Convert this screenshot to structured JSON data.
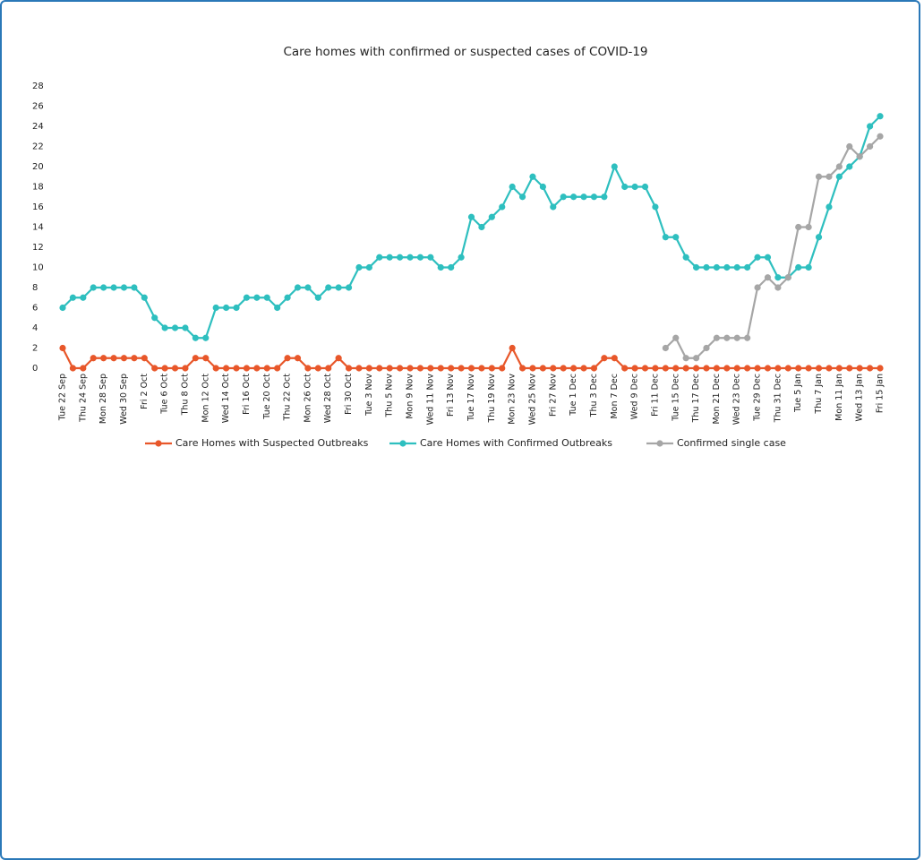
{
  "chart_data": {
    "type": "line",
    "title": "Care homes with confirmed or suspected cases of COVID-19",
    "categories": [
      "Tue 22 Sep",
      null,
      "Thu 24 Sep",
      null,
      "Mon 28 Sep",
      null,
      "Wed 30 Sep",
      null,
      "Fri 2 Oct",
      null,
      "Tue 6 Oct",
      null,
      "Thu 8 Oct",
      null,
      "Mon 12 Oct",
      null,
      "Wed 14 Oct",
      null,
      "Fri 16 Oct",
      null,
      "Tue 20 Oct",
      null,
      "Thu 22 Oct",
      null,
      "Mon 26 Oct",
      null,
      "Wed 28 Oct",
      null,
      "Fri 30 Oct",
      null,
      "Tue 3 Nov",
      null,
      "Thu 5 Nov",
      null,
      "Mon 9 Nov",
      null,
      "Wed 11 Nov",
      null,
      "Fri 13 Nov",
      null,
      "Tue 17 Nov",
      null,
      "Thu 19 Nov",
      null,
      "Mon 23 Nov",
      null,
      "Wed 25 Nov",
      null,
      "Fri 27 Nov",
      null,
      "Tue 1 Dec",
      null,
      "Thu 3 Dec",
      null,
      "Mon 7 Dec",
      null,
      "Wed 9 Dec",
      null,
      "Fri 11 Dec",
      null,
      "Tue 15 Dec",
      null,
      "Thu 17 Dec",
      null,
      "Mon 21 Dec",
      null,
      "Wed 23 Dec",
      null,
      "Tue 29 Dec",
      null,
      "Thu 31 Dec",
      null,
      "Tue 5 Jan",
      null,
      "Thu 7 Jan",
      null,
      "Mon 11 Jan",
      null,
      "Wed 13 Jan",
      null,
      "Fri 15 Jan"
    ],
    "series": [
      {
        "name": "Care Homes with Suspected Outbreaks",
        "color": "#e8572a",
        "values": [
          2,
          0,
          0,
          1,
          1,
          1,
          1,
          1,
          1,
          0,
          0,
          0,
          0,
          1,
          1,
          0,
          0,
          0,
          0,
          0,
          0,
          0,
          1,
          1,
          0,
          0,
          0,
          1,
          0,
          0,
          0,
          0,
          0,
          0,
          0,
          0,
          0,
          0,
          0,
          0,
          0,
          0,
          0,
          0,
          2,
          0,
          0,
          0,
          0,
          0,
          0,
          0,
          0,
          1,
          1,
          0,
          0,
          0,
          0,
          0,
          0,
          0,
          0,
          0,
          0,
          0,
          0,
          0,
          0,
          0,
          0,
          0,
          0,
          0,
          0,
          0,
          0,
          0,
          0,
          0,
          0
        ]
      },
      {
        "name": "Care Homes with Confirmed Outbreaks",
        "color": "#2ebfbf",
        "values": [
          6,
          7,
          7,
          8,
          8,
          8,
          8,
          8,
          7,
          5,
          4,
          4,
          4,
          3,
          3,
          6,
          6,
          6,
          7,
          7,
          7,
          6,
          7,
          8,
          8,
          7,
          8,
          8,
          8,
          10,
          10,
          11,
          11,
          11,
          11,
          11,
          11,
          10,
          10,
          11,
          15,
          14,
          15,
          16,
          18,
          17,
          19,
          18,
          16,
          17,
          17,
          17,
          17,
          17,
          20,
          18,
          18,
          18,
          16,
          13,
          13,
          11,
          10,
          10,
          10,
          10,
          10,
          10,
          11,
          11,
          9,
          9,
          10,
          10,
          13,
          16,
          19,
          20,
          21,
          24,
          25
        ]
      },
      {
        "name": "Confirmed single case",
        "color": "#a6a6a6",
        "values": [
          null,
          null,
          null,
          null,
          null,
          null,
          null,
          null,
          null,
          null,
          null,
          null,
          null,
          null,
          null,
          null,
          null,
          null,
          null,
          null,
          null,
          null,
          null,
          null,
          null,
          null,
          null,
          null,
          null,
          null,
          null,
          null,
          null,
          null,
          null,
          null,
          null,
          null,
          null,
          null,
          null,
          null,
          null,
          null,
          null,
          null,
          null,
          null,
          null,
          null,
          null,
          null,
          null,
          null,
          null,
          null,
          null,
          null,
          null,
          2,
          3,
          1,
          1,
          2,
          3,
          3,
          3,
          3,
          8,
          9,
          8,
          9,
          14,
          14,
          19,
          19,
          20,
          22,
          21,
          22,
          23
        ]
      }
    ],
    "ylim": [
      0,
      28
    ],
    "yticks": [
      0,
      2,
      4,
      6,
      8,
      10,
      12,
      14,
      16,
      18,
      20,
      22,
      24,
      26,
      28
    ],
    "grid": false,
    "legend": "bottom"
  }
}
